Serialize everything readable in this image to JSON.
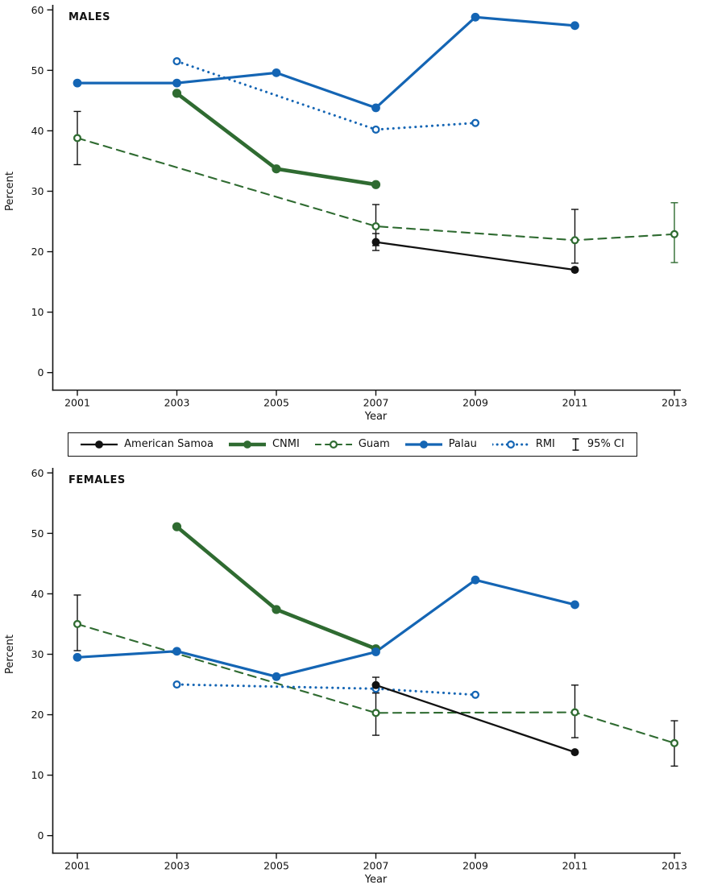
{
  "figure": {
    "panels": [
      "MALES",
      "FEMALES"
    ],
    "xlabel": "Year",
    "ylabel": "Percent"
  },
  "colors": {
    "black": "#111111",
    "green": "#2f6b31",
    "blue": "#1465b4",
    "axis": "#111111"
  },
  "legend": {
    "items": [
      {
        "label": "American Samoa",
        "series": "American Samoa"
      },
      {
        "label": "CNMI",
        "series": "CNMI"
      },
      {
        "label": "Guam",
        "series": "Guam"
      },
      {
        "label": "Palau",
        "series": "Palau"
      },
      {
        "label": "RMI",
        "series": "RMI"
      },
      {
        "label": "95% CI",
        "series": "ci"
      }
    ]
  },
  "chart_data": [
    {
      "type": "line",
      "title": "MALES",
      "xlabel": "Year",
      "ylabel": "Percent",
      "xticks": [
        2001,
        2003,
        2005,
        2007,
        2009,
        2011,
        2013
      ],
      "yticks": [
        0,
        10,
        20,
        30,
        40,
        50,
        60
      ],
      "xlim": [
        2001,
        2013
      ],
      "ylim": [
        0,
        60
      ],
      "grid": false,
      "legend_position": "below",
      "series": [
        {
          "name": "Guam",
          "color_key": "green",
          "line": "dashed",
          "marker": "open",
          "points": [
            {
              "x": 2001,
              "y": 38.8,
              "ci": [
                34.4,
                43.2
              ]
            },
            {
              "x": 2007,
              "y": 24.2,
              "ci": [
                21.0,
                27.8
              ]
            },
            {
              "x": 2011,
              "y": 21.9,
              "ci": [
                18.1,
                27.0
              ]
            },
            {
              "x": 2013,
              "y": 22.9,
              "ci": [
                18.2,
                28.1
              ],
              "ci_color": "green"
            }
          ]
        },
        {
          "name": "CNMI",
          "color_key": "green",
          "line": "solid",
          "marker": "filled",
          "points": [
            {
              "x": 2003,
              "y": 46.2
            },
            {
              "x": 2005,
              "y": 33.7
            },
            {
              "x": 2007,
              "y": 31.1
            }
          ]
        },
        {
          "name": "RMI",
          "color_key": "blue",
          "line": "dotted",
          "marker": "open",
          "points": [
            {
              "x": 2003,
              "y": 51.5
            },
            {
              "x": 2007,
              "y": 40.2
            },
            {
              "x": 2009,
              "y": 41.3
            }
          ]
        },
        {
          "name": "Palau",
          "color_key": "blue",
          "line": "solid",
          "marker": "filled",
          "points": [
            {
              "x": 2001,
              "y": 47.9
            },
            {
              "x": 2003,
              "y": 47.9
            },
            {
              "x": 2005,
              "y": 49.6
            },
            {
              "x": 2007,
              "y": 43.8
            },
            {
              "x": 2009,
              "y": 58.8
            },
            {
              "x": 2011,
              "y": 57.4
            }
          ]
        },
        {
          "name": "American Samoa",
          "color_key": "black",
          "line": "solid",
          "marker": "filled",
          "points": [
            {
              "x": 2007,
              "y": 21.6,
              "ci": [
                20.2,
                23.0
              ]
            },
            {
              "x": 2011,
              "y": 17.0
            }
          ]
        }
      ]
    },
    {
      "type": "line",
      "title": "FEMALES",
      "xlabel": "Year",
      "ylabel": "Percent",
      "xticks": [
        2001,
        2003,
        2005,
        2007,
        2009,
        2011,
        2013
      ],
      "yticks": [
        0,
        10,
        20,
        30,
        40,
        50,
        60
      ],
      "xlim": [
        2001,
        2013
      ],
      "ylim": [
        0,
        60
      ],
      "grid": false,
      "legend_position": "above",
      "series": [
        {
          "name": "Guam",
          "color_key": "green",
          "line": "dashed",
          "marker": "open",
          "points": [
            {
              "x": 2001,
              "y": 35.0,
              "ci": [
                30.6,
                39.8
              ]
            },
            {
              "x": 2007,
              "y": 20.3,
              "ci": [
                16.6,
                23.6
              ]
            },
            {
              "x": 2011,
              "y": 20.4,
              "ci": [
                16.2,
                24.9
              ]
            },
            {
              "x": 2013,
              "y": 15.3,
              "ci": [
                11.5,
                19.0
              ]
            }
          ]
        },
        {
          "name": "CNMI",
          "color_key": "green",
          "line": "solid",
          "marker": "filled",
          "points": [
            {
              "x": 2003,
              "y": 51.1
            },
            {
              "x": 2005,
              "y": 37.4
            },
            {
              "x": 2007,
              "y": 30.9
            }
          ]
        },
        {
          "name": "RMI",
          "color_key": "blue",
          "line": "dotted",
          "marker": "open",
          "points": [
            {
              "x": 2003,
              "y": 25.0
            },
            {
              "x": 2007,
              "y": 24.3
            },
            {
              "x": 2009,
              "y": 23.3
            }
          ]
        },
        {
          "name": "Palau",
          "color_key": "blue",
          "line": "solid",
          "marker": "filled",
          "points": [
            {
              "x": 2001,
              "y": 29.5
            },
            {
              "x": 2003,
              "y": 30.5
            },
            {
              "x": 2005,
              "y": 26.3
            },
            {
              "x": 2007,
              "y": 30.4
            },
            {
              "x": 2009,
              "y": 42.3
            },
            {
              "x": 2011,
              "y": 38.2
            }
          ]
        },
        {
          "name": "American Samoa",
          "color_key": "black",
          "line": "solid",
          "marker": "filled",
          "points": [
            {
              "x": 2007,
              "y": 24.9,
              "ci": [
                23.6,
                26.2
              ]
            },
            {
              "x": 2011,
              "y": 13.8
            }
          ]
        }
      ]
    }
  ]
}
